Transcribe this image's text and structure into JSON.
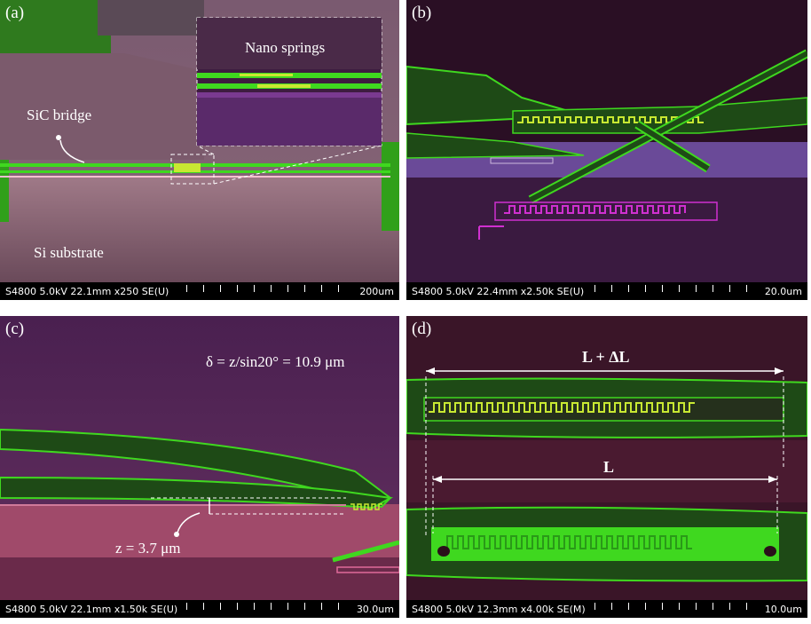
{
  "panels": [
    {
      "label": "(a)",
      "annotations": {
        "inset": "Nano springs",
        "bridge": "SiC bridge",
        "substrate": "Si substrate"
      },
      "info_bar": {
        "settings": "S4800 5.0kV 22.1mm x250 SE(U)",
        "scale": "200um"
      }
    },
    {
      "label": "(b)",
      "info_bar": {
        "settings": "S4800 5.0kV 22.4mm x2.50k SE(U)",
        "scale": "20.0um"
      }
    },
    {
      "label": "(c)",
      "annotations": {
        "delta": "δ = z/sin20° = 10.9 μm",
        "z": "z = 3.7 μm"
      },
      "info_bar": {
        "settings": "S4800 5.0kV 22.1mm x1.50k SE(U)",
        "scale": "30.0um"
      }
    },
    {
      "label": "(d)",
      "annotations": {
        "stretched": "L + ΔL",
        "original": "L"
      },
      "info_bar": {
        "settings": "S4800 5.0kV 12.3mm x4.00k SE(M)",
        "scale": "10.0um"
      }
    }
  ],
  "colors": {
    "sic_green": "#3fd81f",
    "spring_yellow": "#c8e832",
    "substrate_pink": "#9a6a7e",
    "purple": "#5a2a6a",
    "background_dark": "#2a0f24"
  }
}
